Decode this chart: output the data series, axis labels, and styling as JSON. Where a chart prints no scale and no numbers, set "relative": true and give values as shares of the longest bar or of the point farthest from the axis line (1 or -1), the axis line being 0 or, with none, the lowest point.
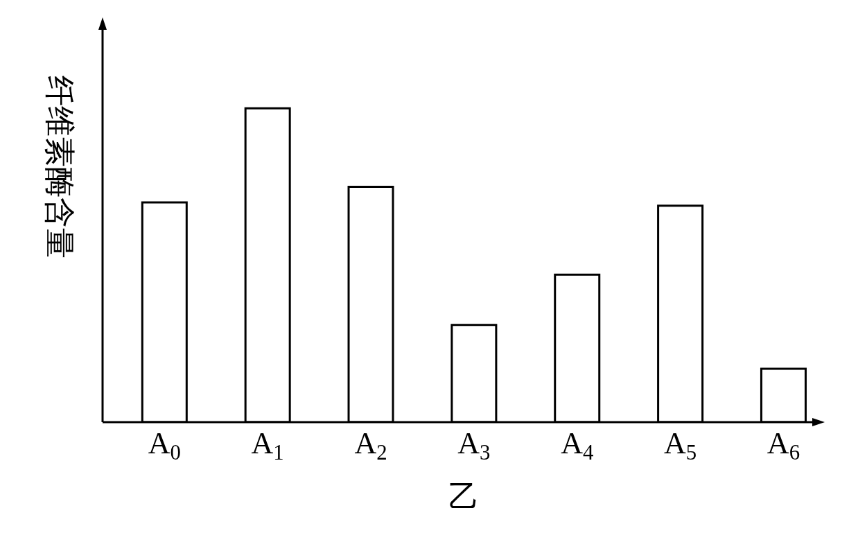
{
  "chart_data": {
    "type": "bar",
    "relative": true,
    "xlabel": "乙",
    "ylabel": "纤维素酶含量",
    "categories": [
      "A$_{0}$",
      "A$_{1}$",
      "A$_{2}$",
      "A$_{3}$",
      "A$_{4}$",
      "A$_{5}$",
      "A$_{6}$"
    ],
    "values": [
      0.7,
      1,
      0.75,
      0.31,
      0.47,
      0.69,
      0.17
    ],
    "color": "#ffffff",
    "grid": false,
    "legend": false
  }
}
